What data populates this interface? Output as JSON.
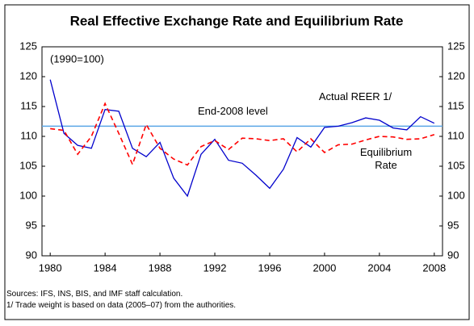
{
  "chart_data": {
    "type": "line",
    "title": "Real Effective Exchange Rate and Equilibrium Rate",
    "annotation": "(1990=100)",
    "reference_line": {
      "label": "End-2008 level",
      "value": 111.7,
      "color": "#5aa6e6"
    },
    "x": [
      1980,
      1981,
      1982,
      1983,
      1984,
      1985,
      1986,
      1987,
      1988,
      1989,
      1990,
      1991,
      1992,
      1993,
      1994,
      1995,
      1996,
      1997,
      1998,
      1999,
      2000,
      2001,
      2002,
      2003,
      2004,
      2005,
      2006,
      2007,
      2008
    ],
    "series": [
      {
        "name": "Actual REER 1/",
        "color": "#0000cc",
        "dash": false,
        "values": [
          119.5,
          110.5,
          108.5,
          108,
          114.5,
          114.2,
          108,
          106.6,
          109,
          103,
          100,
          107,
          109.5,
          106,
          105.5,
          103.5,
          101.3,
          104.5,
          109.8,
          108.2,
          111.5,
          111.7,
          112.3,
          113.1,
          112.7,
          111.4,
          111.1,
          113.3,
          112.2
        ]
      },
      {
        "name": "Equilibrium Rate",
        "color": "#ff0000",
        "dash": true,
        "values": [
          111.3,
          111,
          107,
          110,
          115.5,
          110.5,
          105.3,
          112,
          108,
          106.2,
          105.2,
          108.3,
          109.3,
          107.8,
          109.7,
          109.6,
          109.3,
          109.6,
          107.4,
          109.6,
          107.3,
          108.6,
          108.7,
          109.4,
          110,
          109.9,
          109.5,
          109.6,
          110.3
        ]
      }
    ],
    "xlim": [
      1979.4,
      2008.6
    ],
    "xticks": [
      1980,
      1984,
      1988,
      1992,
      1996,
      2000,
      2004,
      2008
    ],
    "ylim": [
      90,
      125
    ],
    "yticks": [
      90,
      95,
      100,
      105,
      110,
      115,
      120,
      125
    ],
    "y2lim": [
      90,
      125
    ],
    "y2ticks": [
      90,
      95,
      100,
      105,
      110,
      115,
      120,
      125
    ],
    "grid": false,
    "notes": [
      "Sources: IFS, INS, BIS, and IMF staff calculation.",
      "1/ Trade weight is based on data (2005–07) from the authorities."
    ]
  }
}
